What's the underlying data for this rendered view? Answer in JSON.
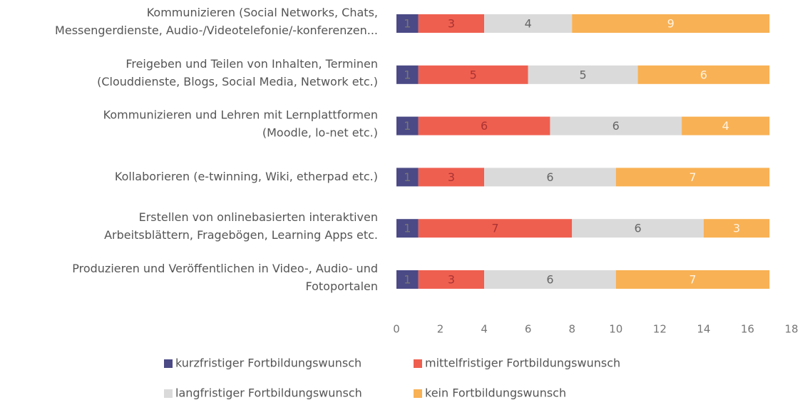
{
  "chart_data": {
    "type": "stacked-bar-horizontal",
    "categories": [
      [
        "Kommunizieren (Social Networks, Chats,",
        "Messengerdienste, Audio-/Videotelefonie/-konferenzen..."
      ],
      [
        "Freigeben und Teilen von Inhalten, Terminen",
        "(Clouddienste, Blogs, Social Media, Network etc.)"
      ],
      [
        "Kommunizieren und Lehren mit Lernplattformen",
        "(Moodle, lo-net etc.)"
      ],
      [
        "Kollaborieren (e-twinning, Wiki, etherpad etc.)"
      ],
      [
        "Erstellen von onlinebasierten interaktiven",
        "Arbeitsblättern, Fragebögen, Learning Apps etc."
      ],
      [
        "Produzieren und Veröffentlichen in Video-, Audio- und",
        "Fotoportalen"
      ]
    ],
    "series": [
      {
        "name": "kurzfristiger Fortbildungswunsch",
        "color": "#4b4a86",
        "values": [
          1,
          1,
          1,
          1,
          1,
          1
        ]
      },
      {
        "name": "mittelfristiger Fortbildungswunsch",
        "color": "#ef5f4f",
        "values": [
          3,
          5,
          6,
          3,
          7,
          3
        ]
      },
      {
        "name": "langfristiger Fortbildungswunsch",
        "color": "#dadada",
        "values": [
          4,
          5,
          6,
          6,
          6,
          6
        ]
      },
      {
        "name": "kein Fortbildungswunsch",
        "color": "#f8b154",
        "values": [
          9,
          6,
          4,
          7,
          3,
          7
        ]
      }
    ],
    "xlim": [
      0,
      18
    ],
    "xticks": [
      0,
      2,
      4,
      6,
      8,
      10,
      12,
      14,
      16,
      18
    ]
  }
}
